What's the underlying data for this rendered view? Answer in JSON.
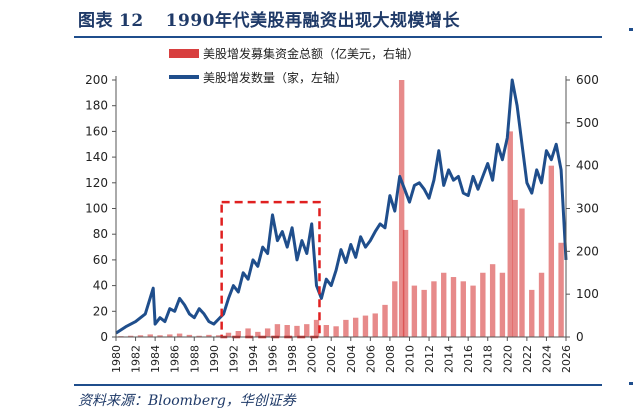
{
  "header": {
    "figure_label": "图表",
    "figure_number": "12",
    "title": "1990年代美股再融资出现大规模增长"
  },
  "source": "资料来源：Bloomberg，华创证券",
  "colors": {
    "amount_bar": "#d42a2a",
    "count_line": "#1f4e8c",
    "highlight_box": "#e02020",
    "text": "#1f3a68"
  },
  "chart_data": {
    "type": "bar+line",
    "title": "1990年代美股再融资出现大规模增长",
    "x_range": [
      1980,
      2026
    ],
    "x_ticks": [
      "1980",
      "1982",
      "1984",
      "1986",
      "1988",
      "1990",
      "1992",
      "1994",
      "1996",
      "1998",
      "2000",
      "2002",
      "2004",
      "2006",
      "2008",
      "2010",
      "2012",
      "2014",
      "2016",
      "2018",
      "2020",
      "2022",
      "2024",
      "2026"
    ],
    "y_left": {
      "range": [
        0,
        200
      ],
      "ticks": [
        "0",
        "20",
        "40",
        "60",
        "80",
        "100",
        "120",
        "140",
        "160",
        "180",
        "200"
      ]
    },
    "y_right": {
      "range": [
        0,
        600
      ],
      "ticks": [
        "0",
        "100",
        "200",
        "300",
        "400",
        "500",
        "600"
      ]
    },
    "legend": {
      "placement": "top-center"
    },
    "grid": false,
    "highlight": {
      "x_start": 1990.8,
      "x_end": 2000.8,
      "y_start": 0,
      "y_end": 105,
      "axis": "left"
    },
    "series": [
      {
        "name": "美股增发募集资金总额（亿美元，右轴）",
        "type": "bar",
        "axis": "right",
        "x": [
          1980.5,
          1981.5,
          1982.5,
          1983.5,
          1984.5,
          1985.5,
          1986.5,
          1987.5,
          1988.5,
          1989.5,
          1990.5,
          1991.5,
          1992.5,
          1993.5,
          1994.5,
          1995.5,
          1996.5,
          1997.5,
          1998.5,
          1999.5,
          2000.5,
          2001.5,
          2002.5,
          2003.5,
          2004.5,
          2005.5,
          2006.5,
          2007.5,
          2008.5,
          2009.2,
          2009.6,
          2010.5,
          2011.5,
          2012.5,
          2013.5,
          2014.5,
          2015.5,
          2016.5,
          2017.5,
          2018.5,
          2019.5,
          2020.3,
          2020.8,
          2021.5,
          2022.5,
          2023.5,
          2024.5,
          2025.5
        ],
        "values": [
          2,
          3,
          4,
          6,
          4,
          6,
          8,
          5,
          3,
          5,
          4,
          10,
          14,
          20,
          12,
          20,
          30,
          28,
          26,
          30,
          40,
          28,
          25,
          40,
          45,
          50,
          55,
          75,
          130,
          600,
          250,
          120,
          110,
          130,
          150,
          140,
          130,
          120,
          150,
          170,
          150,
          480,
          320,
          300,
          110,
          150,
          400,
          220
        ]
      },
      {
        "name": "美股增发数量（家，左轴）",
        "type": "line",
        "axis": "left",
        "x": [
          1980,
          1981,
          1982,
          1983,
          1983.8,
          1984,
          1984.5,
          1985,
          1985.5,
          1986,
          1986.5,
          1987,
          1987.5,
          1988,
          1988.5,
          1989,
          1989.5,
          1990,
          1990.5,
          1991,
          1991.5,
          1992,
          1992.5,
          1993,
          1993.5,
          1994,
          1994.5,
          1995,
          1995.5,
          1996,
          1996.5,
          1997,
          1997.5,
          1998,
          1998.5,
          1999,
          1999.5,
          2000,
          2000.5,
          2001,
          2001.5,
          2002,
          2002.5,
          2003,
          2003.5,
          2004,
          2004.5,
          2005,
          2005.5,
          2006,
          2006.5,
          2007,
          2007.5,
          2008,
          2008.5,
          2009,
          2009.5,
          2010,
          2010.5,
          2011,
          2011.5,
          2012,
          2012.5,
          2013,
          2013.5,
          2014,
          2014.5,
          2015,
          2015.5,
          2016,
          2016.5,
          2017,
          2017.5,
          2018,
          2018.5,
          2019,
          2019.5,
          2020,
          2020.5,
          2021,
          2021.5,
          2022,
          2022.5,
          2023,
          2023.5,
          2024,
          2024.5,
          2025,
          2025.5,
          2026
        ],
        "values": [
          3,
          8,
          12,
          18,
          38,
          10,
          15,
          12,
          22,
          20,
          30,
          25,
          18,
          15,
          22,
          18,
          12,
          10,
          14,
          18,
          30,
          40,
          35,
          50,
          45,
          60,
          55,
          70,
          65,
          95,
          75,
          82,
          70,
          85,
          60,
          75,
          65,
          88,
          40,
          30,
          45,
          40,
          52,
          68,
          58,
          72,
          62,
          78,
          70,
          75,
          82,
          88,
          85,
          110,
          98,
          125,
          115,
          105,
          118,
          120,
          115,
          108,
          122,
          145,
          118,
          130,
          122,
          125,
          112,
          110,
          125,
          115,
          125,
          135,
          122,
          150,
          138,
          155,
          200,
          180,
          150,
          120,
          112,
          130,
          120,
          145,
          138,
          150,
          130,
          60
        ]
      }
    ]
  }
}
